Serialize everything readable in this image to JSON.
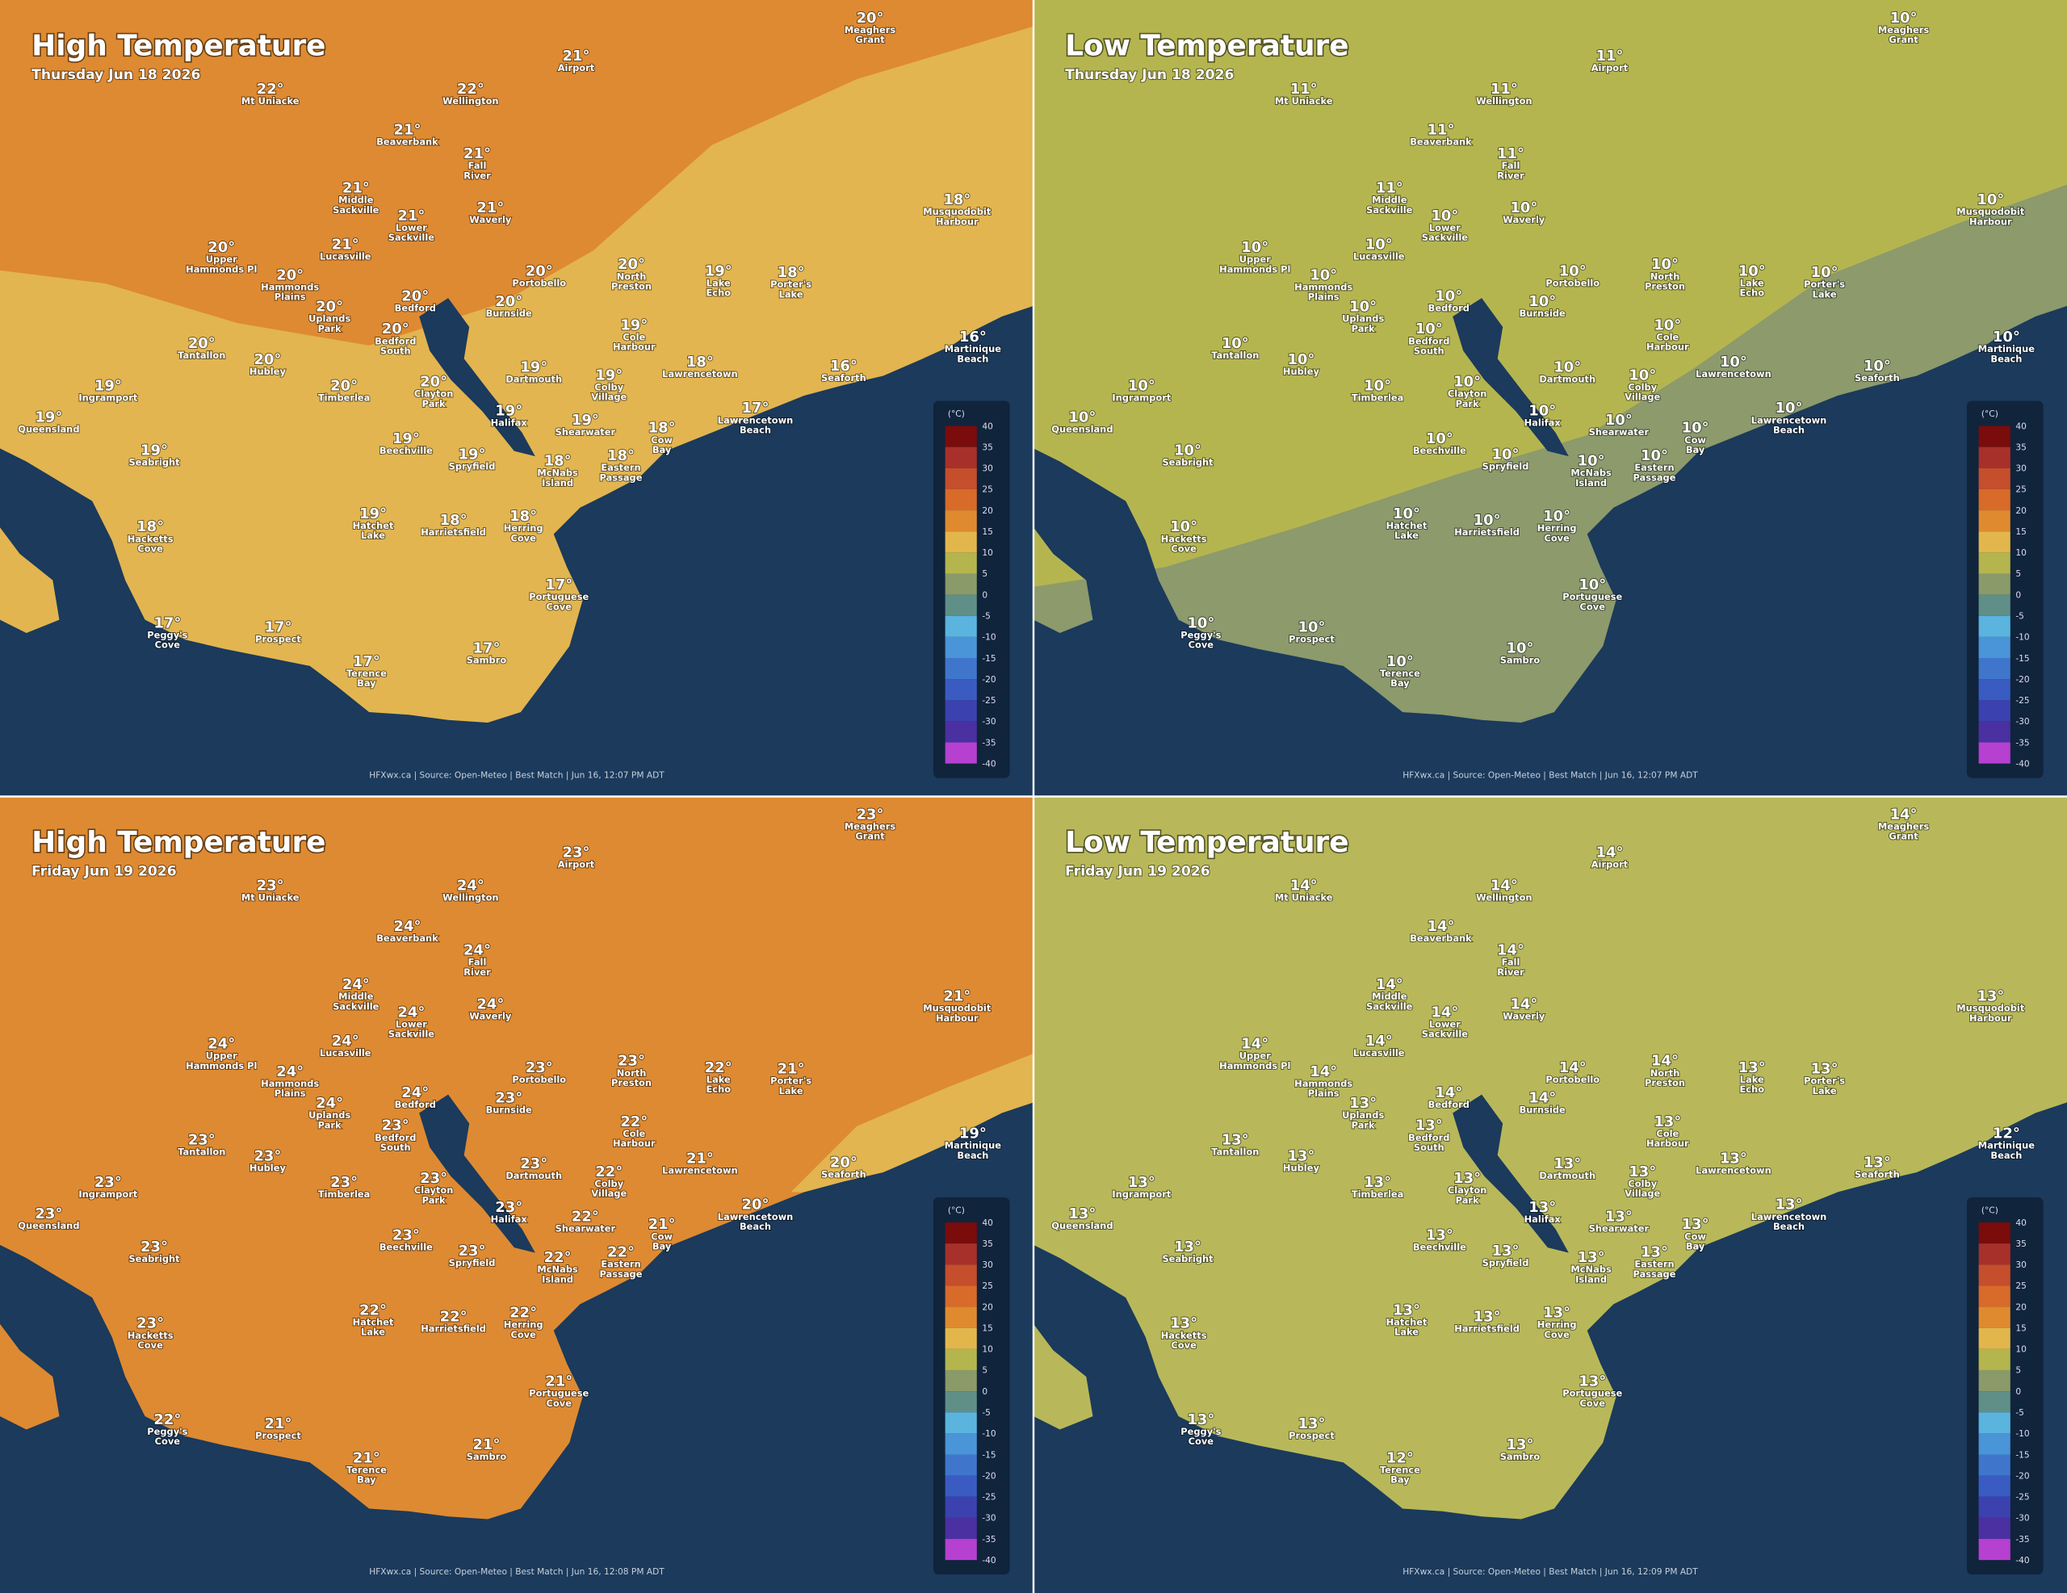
{
  "places": [
    [
      "Meaghers",
      "Grant"
    ],
    [
      "Airport"
    ],
    [
      "Mt Uniacke"
    ],
    [
      "Wellington"
    ],
    [
      "Beaverbank"
    ],
    [
      "Fall",
      "River"
    ],
    [
      "Middle",
      "Sackville"
    ],
    [
      "Waverly"
    ],
    [
      "Lower",
      "Sackville"
    ],
    [
      "Musquodobit",
      "Harbour"
    ],
    [
      "Lucasville"
    ],
    [
      "Upper",
      "Hammonds Pl"
    ],
    [
      "Hammonds",
      "Plains"
    ],
    [
      "Portobello"
    ],
    [
      "North",
      "Preston"
    ],
    [
      "Lake",
      "Echo"
    ],
    [
      "Porter's",
      "Lake"
    ],
    [
      "Uplands",
      "Park"
    ],
    [
      "Bedford"
    ],
    [
      "Burnside"
    ],
    [
      "Bedford",
      "South"
    ],
    [
      "Cole",
      "Harbour"
    ],
    [
      "Martinique",
      "Beach"
    ],
    [
      "Tantallon"
    ],
    [
      "Hubley"
    ],
    [
      "Dartmouth"
    ],
    [
      "Lawrencetown"
    ],
    [
      "Seaforth"
    ],
    [
      "Timberlea"
    ],
    [
      "Clayton",
      "Park"
    ],
    [
      "Colby",
      "Village"
    ],
    [
      "Ingramport"
    ],
    [
      "Queensland"
    ],
    [
      "Halifax"
    ],
    [
      "Shearwater"
    ],
    [
      "Lawrencetown",
      "Beach"
    ],
    [
      "Cow",
      "Bay"
    ],
    [
      "Beechville"
    ],
    [
      "Seabright"
    ],
    [
      "Spryfield"
    ],
    [
      "McNabs",
      "Island"
    ],
    [
      "Eastern",
      "Passage"
    ],
    [
      "Hatchet",
      "Lake"
    ],
    [
      "Harrietsfield"
    ],
    [
      "Herring",
      "Cove"
    ],
    [
      "Hacketts",
      "Cove"
    ],
    [
      "Portuguese",
      "Cove"
    ],
    [
      "Peggy's",
      "Cove"
    ],
    [
      "Prospect"
    ],
    [
      "Terence",
      "Bay"
    ],
    [
      "Sambro"
    ]
  ],
  "legend": {
    "unit": "(°C)",
    "ticks": [
      40,
      35,
      30,
      25,
      20,
      15,
      10,
      5,
      0,
      -5,
      -10,
      -15,
      -20,
      -25,
      -30,
      -35,
      -40
    ],
    "colors": [
      "#7a0c0c",
      "#a8302a",
      "#c54e2c",
      "#d86a2a",
      "#e08a30",
      "#e3b64c",
      "#b5b54e",
      "#8a9a68",
      "#5f8f86",
      "#5ab4de",
      "#4a94d8",
      "#3f76cc",
      "#3a5cc2",
      "#3b42b0",
      "#4a30a0",
      "#b640d0"
    ]
  },
  "panels": [
    {
      "title": "High Temperature",
      "date": "Thursday Jun 18 2026",
      "source": "HFXwx.ca | Source: Open-Meteo | Best Match | Jun 16, 12:07 PM ADT",
      "temps": [
        "20°",
        "21°",
        "22°",
        "22°",
        "21°",
        "21°",
        "21°",
        "21°",
        "21°",
        "18°",
        "21°",
        "20°",
        "20°",
        "20°",
        "20°",
        "19°",
        "18°",
        "20°",
        "20°",
        "20°",
        "20°",
        "19°",
        "16°",
        "20°",
        "20°",
        "19°",
        "18°",
        "16°",
        "20°",
        "20°",
        "19°",
        "19°",
        "19°",
        "19°",
        "19°",
        "17°",
        "18°",
        "19°",
        "19°",
        "19°",
        "18°",
        "18°",
        "19°",
        "18°",
        "18°",
        "18°",
        "17°",
        "17°",
        "17°",
        "17°",
        "17°"
      ]
    },
    {
      "title": "Low Temperature",
      "date": "Thursday Jun 18 2026",
      "source": "HFXwx.ca | Source: Open-Meteo | Best Match | Jun 16, 12:07 PM ADT",
      "temps": [
        "10°",
        "11°",
        "11°",
        "11°",
        "11°",
        "11°",
        "11°",
        "10°",
        "10°",
        "10°",
        "10°",
        "10°",
        "10°",
        "10°",
        "10°",
        "10°",
        "10°",
        "10°",
        "10°",
        "10°",
        "10°",
        "10°",
        "10°",
        "10°",
        "10°",
        "10°",
        "10°",
        "10°",
        "10°",
        "10°",
        "10°",
        "10°",
        "10°",
        "10°",
        "10°",
        "10°",
        "10°",
        "10°",
        "10°",
        "10°",
        "10°",
        "10°",
        "10°",
        "10°",
        "10°",
        "10°",
        "10°",
        "10°",
        "10°",
        "10°",
        "10°"
      ]
    },
    {
      "title": "High Temperature",
      "date": "Friday Jun 19 2026",
      "source": "HFXwx.ca | Source: Open-Meteo | Best Match | Jun 16, 12:08 PM ADT",
      "temps": [
        "23°",
        "23°",
        "23°",
        "24°",
        "24°",
        "24°",
        "24°",
        "24°",
        "24°",
        "21°",
        "24°",
        "24°",
        "24°",
        "23°",
        "23°",
        "22°",
        "21°",
        "24°",
        "24°",
        "23°",
        "23°",
        "22°",
        "19°",
        "23°",
        "23°",
        "23°",
        "21°",
        "20°",
        "23°",
        "23°",
        "22°",
        "23°",
        "23°",
        "23°",
        "22°",
        "20°",
        "21°",
        "23°",
        "23°",
        "23°",
        "22°",
        "22°",
        "22°",
        "22°",
        "22°",
        "23°",
        "21°",
        "22°",
        "21°",
        "21°",
        "21°"
      ]
    },
    {
      "title": "Low Temperature",
      "date": "Friday Jun 19 2026",
      "source": "HFXwx.ca | Source: Open-Meteo | Best Match | Jun 16, 12:09 PM ADT",
      "temps": [
        "14°",
        "14°",
        "14°",
        "14°",
        "14°",
        "14°",
        "14°",
        "14°",
        "14°",
        "13°",
        "14°",
        "14°",
        "14°",
        "14°",
        "14°",
        "13°",
        "13°",
        "13°",
        "14°",
        "14°",
        "13°",
        "13°",
        "12°",
        "13°",
        "13°",
        "13°",
        "13°",
        "13°",
        "13°",
        "13°",
        "13°",
        "13°",
        "13°",
        "13°",
        "13°",
        "13°",
        "13°",
        "13°",
        "13°",
        "13°",
        "13°",
        "13°",
        "13°",
        "13°",
        "13°",
        "13°",
        "13°",
        "13°",
        "13°",
        "12°",
        "13°"
      ]
    }
  ]
}
